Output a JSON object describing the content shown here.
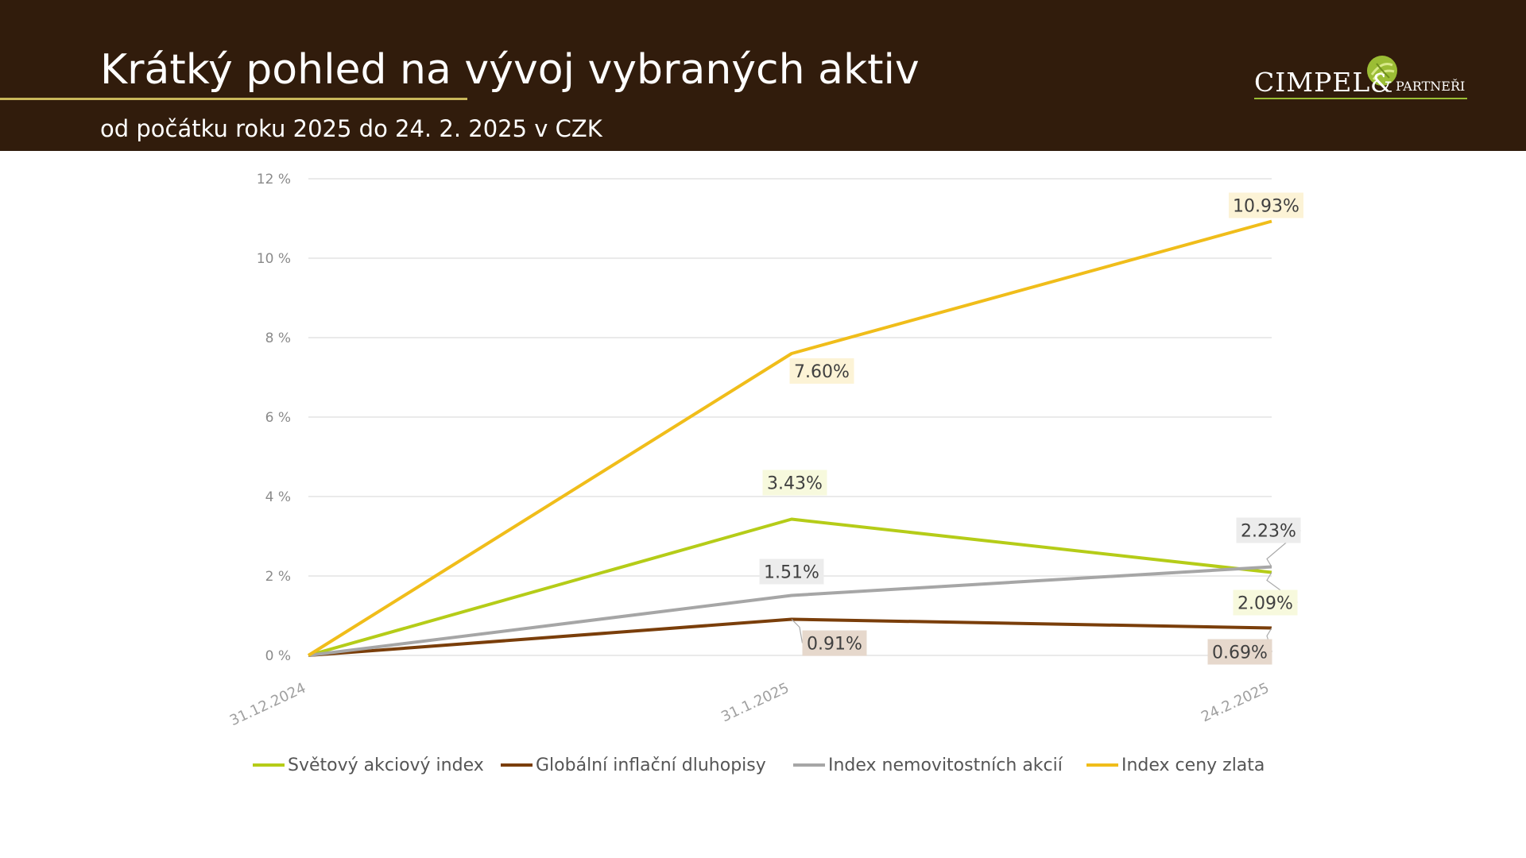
{
  "header": {
    "title": "Krátký pohled na vývoj vybraných aktiv",
    "subtitle": "od počátku roku 2025 do 24. 2. 2025 v CZK"
  },
  "logo": {
    "main": "CIMPEL",
    "ampersand": "&",
    "sub": "PARTNEŘI",
    "accent_color": "#9bbd35"
  },
  "chart_data": {
    "type": "line",
    "x": [
      "31.12.2024",
      "31.1.2025",
      "24.2.2025"
    ],
    "y_ticks": [
      "0 %",
      "2 %",
      "4 %",
      "6 %",
      "8 %",
      "10 %",
      "12 %"
    ],
    "ylim": [
      0,
      12
    ],
    "grid": true,
    "legend_position": "bottom",
    "series": [
      {
        "name": "Světový akciový index",
        "color": "#b5cc18",
        "values": [
          0,
          3.43,
          2.09
        ],
        "labels": [
          "",
          "3.43%",
          "2.09%"
        ],
        "label_bg": "#f7f9dd"
      },
      {
        "name": "Globální inflační dluhopisy",
        "color": "#7a3e0a",
        "values": [
          0,
          0.91,
          0.69
        ],
        "labels": [
          "",
          "0.91%",
          "0.69%"
        ],
        "label_bg": "#e6d8cc"
      },
      {
        "name": "Index nemovitostních akcií",
        "color": "#a6a6a6",
        "values": [
          0,
          1.51,
          2.23
        ],
        "labels": [
          "",
          "1.51%",
          "2.23%"
        ],
        "label_bg": "#ececec"
      },
      {
        "name": "Index ceny zlata",
        "color": "#f0bd1a",
        "values": [
          0,
          7.6,
          10.93
        ],
        "labels": [
          "",
          "7.60%",
          "10.93%"
        ],
        "label_bg": "#fcf3d6"
      }
    ]
  }
}
